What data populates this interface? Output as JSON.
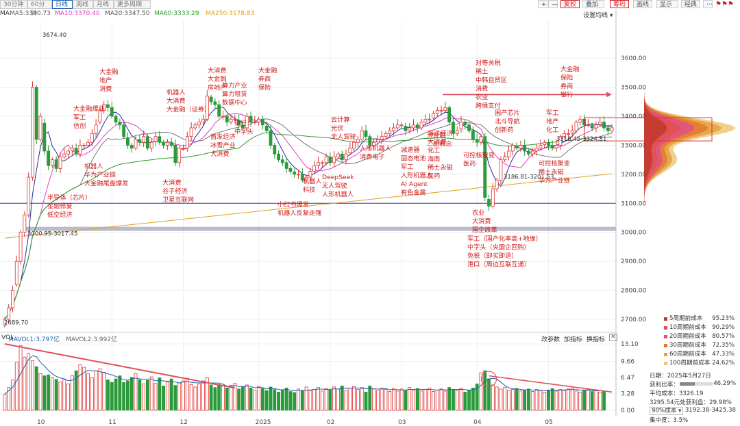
{
  "toolbar": {
    "tabs": [
      "30分钟",
      "60分钟",
      "日线",
      "周线",
      "月线",
      "更多周期"
    ],
    "active_tab": "日线",
    "buttons_right": [
      "+",
      "—",
      "复权",
      "叠加",
      "筹码",
      "画线",
      "显示",
      "经典",
      "⋯"
    ],
    "settings_label": "设置均线 ▾"
  },
  "ma_legend": [
    {
      "label": "MA5:3360.73",
      "color": "#5a5a5a"
    },
    {
      "label": "MA10:3370.40",
      "color": "#e040c0"
    },
    {
      "label": "MA20:3347.50",
      "color": "#555555"
    },
    {
      "label": "MA60:3333.29",
      "color": "#2f9a2f"
    },
    {
      "label": "MA250:3178.83",
      "color": "#e0a020"
    }
  ],
  "ma_prefix": "MA",
  "chart_data": {
    "type": "candlestick",
    "y_ticks": [
      2700,
      2800,
      2900,
      3000,
      3100,
      3200,
      3300,
      3400,
      3500,
      3600
    ],
    "ylim": [
      2660,
      3730
    ],
    "x_labels": [
      "10",
      "11",
      "12",
      "2025",
      "02",
      "03",
      "04",
      "05"
    ],
    "price_notes": [
      "3674.40",
      "2689.70",
      "3000.95-3017.45",
      "3186.81-3201.53",
      "3316.45-3324.81"
    ],
    "reference_lines": [
      3100,
      3012
    ],
    "annotations": [
      "大金融\n地产\n消费",
      "大金融爆涨\n军工\n信创",
      "机器人\n华为产业链\n大金融尾盘爆发",
      "半导体（芯片）\n金融修复\n低空经济",
      "机器人\n大消费\n大金融（证券）",
      "大消费\n大金融\n房地产",
      "算力产业\n算力租赁\n数据中心",
      "大金融\n券商\n保险",
      "大消费\n谷子经济\n卫星互联网",
      "首发经济\n冰雪产业\n大消费",
      "银行\n中字头",
      "小红书爆发\n机器人反复走强",
      "DeepSeek\n无人驾驶\n人形机器人",
      "机器人\n科技",
      "云计算\n光伏\n无人驾驶",
      "人形机器人\n消费电子",
      "减速器\n固态电池\n军工\n人形机器人\nAI Agent\n有色金属",
      "大金融\n二胎概念",
      "海洋经济\n大消费\n化工\n海南\n稀土永磁\n医药",
      "对等关税\n稀土\n中韩自贸区\n消费\n农业\n跨境支付",
      "国产芯片\n北斗导航\n创新药",
      "可控核聚变\n医药",
      "农业\n大消费\n国企改革",
      "军工（国产化率高+地缘）\n中字头（央国企回购）\n免税（即买即退）\n港口（周边互联互通）",
      "大金融\n保险\n券商\n银行",
      "军工\n地产\n化工",
      "可控核聚变\n稀土永磁\n华为产业链"
    ],
    "closes": [
      2700,
      2740,
      2800,
      2900,
      3000,
      3060,
      3190,
      3500,
      3320,
      3400,
      3280,
      3230,
      3250,
      3220,
      3260,
      3270,
      3280,
      3290,
      3270,
      3300,
      3300,
      3310,
      3340,
      3370,
      3420,
      3440,
      3430,
      3400,
      3380,
      3370,
      3330,
      3300,
      3290,
      3320,
      3310,
      3330,
      3290,
      3310,
      3330,
      3310,
      3300,
      3310,
      3300,
      3240,
      3290,
      3290,
      3330,
      3360,
      3370,
      3380,
      3390,
      3470,
      3450,
      3440,
      3400,
      3400,
      3380,
      3390,
      3390,
      3370,
      3360,
      3400,
      3380,
      3380,
      3390,
      3370,
      3350,
      3300,
      3270,
      3250,
      3240,
      3220,
      3210,
      3200,
      3200,
      3180,
      3190,
      3210,
      3230,
      3240,
      3240,
      3260,
      3240,
      3260,
      3270,
      3250,
      3270,
      3290,
      3310,
      3320,
      3350,
      3330,
      3300,
      3310,
      3320,
      3330,
      3340,
      3350,
      3360,
      3370,
      3370,
      3350,
      3360,
      3370,
      3360,
      3380,
      3390,
      3390,
      3410,
      3420,
      3420,
      3430,
      3380,
      3340,
      3350,
      3380,
      3370,
      3350,
      3320,
      3310,
      3330,
      3120,
      3090,
      3150,
      3180,
      3250,
      3260,
      3280,
      3300,
      3290,
      3300,
      3280,
      3270,
      3280,
      3290,
      3300,
      3310,
      3300,
      3290,
      3300,
      3330,
      3340,
      3340,
      3350,
      3380,
      3390,
      3370,
      3370,
      3360,
      3370,
      3380,
      3360,
      3350,
      3360
    ],
    "volume": {
      "label": "VOL",
      "mavol1": "MAVOL1:3.797亿",
      "mavol2": "MAVOL2:3.992亿",
      "y_ticks": [
        "13.10",
        "9.66",
        "6.47",
        "3.28",
        "0.00"
      ],
      "ylim": [
        0,
        13.5
      ],
      "values": [
        3.2,
        4.5,
        6.0,
        9.5,
        12.8,
        10.5,
        11.2,
        9.8,
        8.6,
        7.2,
        6.8,
        7.0,
        6.4,
        6.1,
        5.6,
        6.0,
        5.2,
        6.8,
        7.8,
        9.0,
        8.5,
        7.2,
        6.4,
        7.8,
        8.2,
        7.5,
        6.0,
        5.5,
        6.2,
        6.8,
        5.5,
        5.8,
        6.5,
        7.2,
        6.0,
        5.2,
        5.9,
        6.6,
        5.3,
        6.4,
        4.8,
        5.6,
        6.2,
        4.9,
        5.4,
        5.8,
        6.3,
        5.1,
        4.6,
        5.2,
        5.8,
        6.4,
        5.0,
        4.5,
        5.1,
        4.8,
        4.4,
        4.9,
        5.3,
        4.2,
        4.6,
        5.0,
        4.4,
        4.0,
        4.7,
        4.3,
        3.9,
        4.6,
        4.1,
        3.6,
        4.0,
        4.4,
        3.7,
        3.5,
        4.2,
        3.8,
        4.6,
        3.9,
        4.1,
        4.5,
        3.8,
        4.3,
        4.0,
        4.6,
        4.2,
        4.8,
        3.9,
        4.4,
        4.7,
        4.1,
        4.5,
        3.6,
        4.8,
        4.2,
        3.9,
        4.4,
        4.1,
        3.7,
        4.3,
        3.8,
        4.2,
        3.9,
        4.5,
        4.0,
        4.3,
        3.8,
        4.1,
        4.4,
        3.7,
        4.0,
        4.2,
        3.8,
        4.5,
        4.1,
        3.9,
        4.3,
        3.6,
        4.0,
        4.4,
        5.2,
        7.4,
        7.8,
        6.2,
        5.0,
        4.6,
        4.2,
        4.5,
        3.9,
        4.1,
        4.3,
        3.8,
        4.0,
        4.2,
        3.7,
        4.1,
        3.9,
        3.6,
        4.0,
        4.3,
        3.8,
        4.1,
        3.9,
        4.2,
        4.4,
        3.8,
        3.6,
        4.0,
        4.1,
        3.7,
        3.9,
        3.6,
        3.8
      ]
    }
  },
  "volume_buttons": [
    "改参数",
    "加指标",
    "换指标",
    "✕"
  ],
  "chip_legend": [
    {
      "label": "5周期前成本",
      "value": "95.23%",
      "color": "#c0392b"
    },
    {
      "label": "10周期前成本",
      "value": "90.29%",
      "color": "#e05050"
    },
    {
      "label": "20周期前成本",
      "value": "80.57%",
      "color": "#e0508a"
    },
    {
      "label": "30周期前成本",
      "value": "72.35%",
      "color": "#e07a30"
    },
    {
      "label": "60周期前成本",
      "value": "47.33%",
      "color": "#e8a040"
    },
    {
      "label": "100周期前成本",
      "value": "24.62%",
      "color": "#f0c878"
    }
  ],
  "chip_stats": {
    "date": "日期：2025年5月27日",
    "profit_ratio_label": "获利比率：",
    "profit_ratio": "46.29%",
    "avg_cost": "平均成本：3326.19",
    "profit_line": "3295.54元处获利盘：29.98%",
    "range_select": "90%成本 ▾",
    "range_value": "3192.38-3425.38",
    "concentration": "集中度：3.5%"
  }
}
